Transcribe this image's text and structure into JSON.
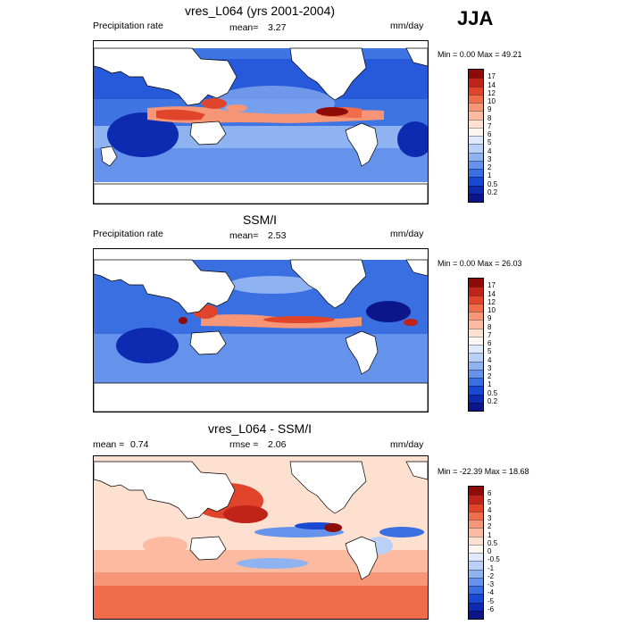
{
  "season": "JJA",
  "panels": [
    {
      "title": "vres_L064 (yrs 2001-2004)",
      "left_label": "Precipitation rate",
      "mean_label": "mean=",
      "mean_value": "3.27",
      "units": "mm/day",
      "range_text": "Min =   0.00 Max =  49.21",
      "colorbar": {
        "labels": [
          "17",
          "14",
          "12",
          "10",
          "9",
          "8",
          "7",
          "6",
          "5",
          "4",
          "3",
          "2",
          "1",
          "0.5",
          "0.2"
        ],
        "colors": [
          "#8e0b07",
          "#c0231a",
          "#e0452b",
          "#ef6d4b",
          "#f79676",
          "#fcbba0",
          "#fde0cf",
          "#fdf6f0",
          "#dfe9fb",
          "#bad0f7",
          "#8fb2f1",
          "#6592eb",
          "#3a6fe2",
          "#1849d3",
          "#0c2bb0",
          "#0b168a"
        ]
      }
    },
    {
      "title": "SSM/I",
      "left_label": "Precipitation rate",
      "mean_label": "mean=",
      "mean_value": "2.53",
      "units": "mm/day",
      "range_text": "Min =   0.00 Max =  26.03",
      "colorbar": {
        "labels": [
          "17",
          "14",
          "12",
          "10",
          "9",
          "8",
          "7",
          "6",
          "5",
          "4",
          "3",
          "2",
          "1",
          "0.5",
          "0.2"
        ],
        "colors": [
          "#8e0b07",
          "#c0231a",
          "#e0452b",
          "#ef6d4b",
          "#f79676",
          "#fcbba0",
          "#fde0cf",
          "#fdf6f0",
          "#dfe9fb",
          "#bad0f7",
          "#8fb2f1",
          "#6592eb",
          "#3a6fe2",
          "#1849d3",
          "#0c2bb0",
          "#0b168a"
        ]
      }
    },
    {
      "title": "vres_L064 - SSM/I",
      "left_label": "mean =",
      "left_value": "0.74",
      "mean_label": "rmse =",
      "mean_value": "2.06",
      "units": "mm/day",
      "range_text": "Min = -22.39 Max =  18.68",
      "colorbar": {
        "labels": [
          "6",
          "5",
          "4",
          "3",
          "2",
          "1",
          "0.5",
          "0",
          "-0.5",
          "-1",
          "-2",
          "-3",
          "-4",
          "-5",
          "-6"
        ],
        "colors": [
          "#8e0b07",
          "#c0231a",
          "#e0452b",
          "#ef6d4b",
          "#f79676",
          "#fcbba0",
          "#fde0cf",
          "#fdf6f0",
          "#dfe9fb",
          "#bad0f7",
          "#8fb2f1",
          "#6592eb",
          "#3a6fe2",
          "#1849d3",
          "#0c2bb0",
          "#0b168a"
        ]
      }
    }
  ]
}
